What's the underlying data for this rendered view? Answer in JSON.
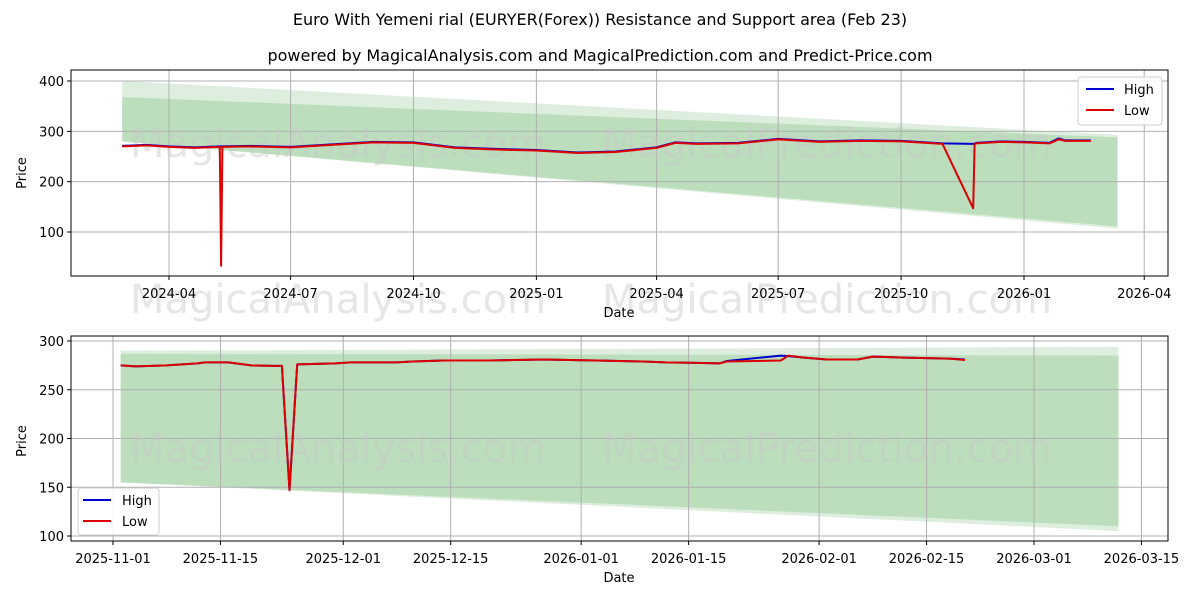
{
  "header": {
    "title": "Euro With Yemeni rial (EURYER(Forex)) Resistance and Support area (Feb 23)",
    "subtitle": "powered by MagicalAnalysis.com and MagicalPrediction.com and Predict-Price.com"
  },
  "watermarks": [
    "MagicalAnalysis.com",
    "MagicalPrediction.com"
  ],
  "colors": {
    "high": "#0000cc",
    "low": "#dd0000",
    "band_dark": "#b8dcb8",
    "band_light": "#deeede",
    "grid": "#b0b0b0"
  },
  "chart_data": [
    {
      "type": "line",
      "title": "",
      "xlabel": "Date",
      "ylabel": "Price",
      "ylim": [
        12,
        420
      ],
      "yticks": [
        100,
        200,
        300,
        400
      ],
      "xticks": [
        "2024-04",
        "2024-07",
        "2024-10",
        "2025-01",
        "2025-04",
        "2025-07",
        "2025-10",
        "2026-01",
        "2026-04"
      ],
      "grid": true,
      "legend": {
        "position": "upper right",
        "entries": [
          "High",
          "Low"
        ]
      },
      "x": [
        "2024-02-26",
        "2024-03-15",
        "2024-04-01",
        "2024-04-20",
        "2024-05-09",
        "2024-05-10",
        "2024-05-11",
        "2024-06-01",
        "2024-07-01",
        "2024-08-01",
        "2024-09-01",
        "2024-10-01",
        "2024-11-01",
        "2024-12-01",
        "2025-01-01",
        "2025-02-01",
        "2025-03-01",
        "2025-04-01",
        "2025-04-15",
        "2025-05-01",
        "2025-06-01",
        "2025-07-01",
        "2025-08-01",
        "2025-09-01",
        "2025-10-01",
        "2025-11-01",
        "2025-11-24",
        "2025-11-25",
        "2025-11-26",
        "2025-12-15",
        "2026-01-01",
        "2026-01-20",
        "2026-01-27",
        "2026-02-01",
        "2026-02-20"
      ],
      "series": [
        {
          "name": "High",
          "values": [
            271,
            273,
            270,
            268,
            270,
            270,
            270,
            271,
            269,
            274,
            279,
            278,
            268,
            265,
            263,
            258,
            260,
            268,
            278,
            276,
            277,
            285,
            280,
            282,
            281,
            276,
            275,
            275,
            277,
            280,
            279,
            277,
            286,
            282,
            282
          ]
        },
        {
          "name": "Low",
          "values": [
            270,
            272,
            269,
            267,
            269,
            33,
            269,
            270,
            268,
            273,
            278,
            277,
            267,
            264,
            262,
            257,
            259,
            267,
            277,
            275,
            276,
            284,
            279,
            281,
            280,
            275,
            147,
            274,
            276,
            279,
            278,
            276,
            284,
            281,
            281
          ]
        }
      ],
      "bands": [
        {
          "name": "resistance-support-outer",
          "x": [
            "2024-02-26",
            "2026-03-12"
          ],
          "upper": [
            400,
            293
          ],
          "lower": [
            280,
            107
          ]
        },
        {
          "name": "resistance-support-inner",
          "x": [
            "2024-02-26",
            "2026-03-12"
          ],
          "upper": [
            368,
            288
          ],
          "lower": [
            280,
            111
          ]
        }
      ]
    },
    {
      "type": "line",
      "title": "",
      "xlabel": "Date",
      "ylabel": "Price",
      "ylim": [
        95,
        305
      ],
      "yticks": [
        100,
        150,
        200,
        250,
        300
      ],
      "xticks": [
        "2025-11-01",
        "2025-11-15",
        "2025-12-01",
        "2025-12-15",
        "2026-01-01",
        "2026-01-15",
        "2026-02-01",
        "2026-02-15",
        "2026-03-01",
        "2026-03-15"
      ],
      "grid": true,
      "legend": {
        "position": "lower left",
        "entries": [
          "High",
          "Low"
        ]
      },
      "x": [
        "2025-11-02",
        "2025-11-04",
        "2025-11-08",
        "2025-11-12",
        "2025-11-13",
        "2025-11-16",
        "2025-11-19",
        "2025-11-22",
        "2025-11-23",
        "2025-11-24",
        "2025-11-25",
        "2025-11-30",
        "2025-12-02",
        "2025-12-08",
        "2025-12-10",
        "2025-12-14",
        "2025-12-20",
        "2025-12-27",
        "2026-01-03",
        "2026-01-09",
        "2026-01-12",
        "2026-01-16",
        "2026-01-19",
        "2026-01-20",
        "2026-01-27",
        "2026-01-28",
        "2026-01-30",
        "2026-02-02",
        "2026-02-06",
        "2026-02-08",
        "2026-02-12",
        "2026-02-18",
        "2026-02-20"
      ],
      "series": [
        {
          "name": "High",
          "values": [
            275,
            274,
            275,
            277,
            278,
            278,
            275,
            274.5,
            274.5,
            147,
            276,
            277,
            278,
            278,
            279,
            280,
            280,
            281,
            280,
            279,
            278,
            277.5,
            277,
            279.5,
            285,
            284.5,
            283,
            281,
            281,
            284,
            283,
            282,
            281
          ]
        },
        {
          "name": "Low",
          "values": [
            275,
            274,
            275,
            277,
            278,
            278,
            275,
            274.5,
            274.5,
            147,
            276,
            277,
            278,
            278,
            279,
            280,
            280,
            281,
            280,
            279,
            278,
            277.5,
            277,
            279,
            280,
            285,
            283,
            281,
            281,
            284,
            283,
            282,
            280.5
          ]
        }
      ],
      "bands": [
        {
          "name": "resistance-support-outer",
          "x": [
            "2025-11-02",
            "2026-03-12"
          ],
          "upper": [
            290,
            294
          ],
          "lower": [
            155,
            105
          ]
        },
        {
          "name": "resistance-support-inner",
          "x": [
            "2025-11-02",
            "2026-03-12"
          ],
          "upper": [
            287,
            285
          ],
          "lower": [
            155,
            110
          ]
        }
      ]
    }
  ]
}
